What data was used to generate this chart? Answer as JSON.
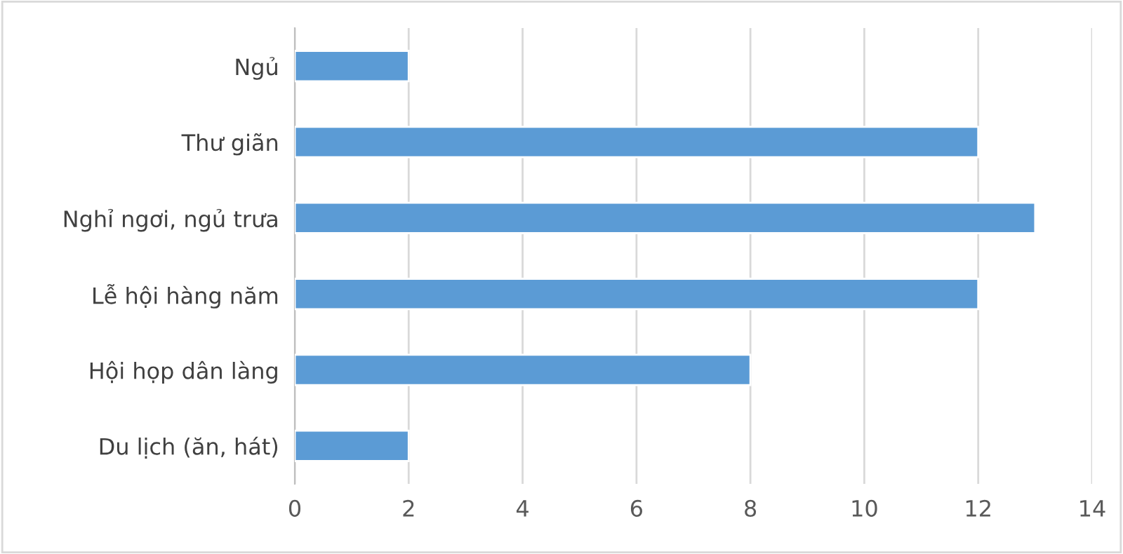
{
  "chart_data": {
    "type": "bar",
    "orientation": "horizontal",
    "categories": [
      "Ngủ",
      "Thư giãn",
      "Nghỉ ngơi, ngủ trưa",
      "Lễ hội hàng năm",
      "Hội họp dân làng",
      "Du lịch (ăn, hát)"
    ],
    "values": [
      2,
      12,
      13,
      12,
      8,
      2
    ],
    "color": "#5b9bd5",
    "xlim": [
      0,
      14
    ],
    "xticks": [
      0,
      2,
      4,
      6,
      8,
      10,
      12,
      14
    ],
    "grid": "x"
  }
}
